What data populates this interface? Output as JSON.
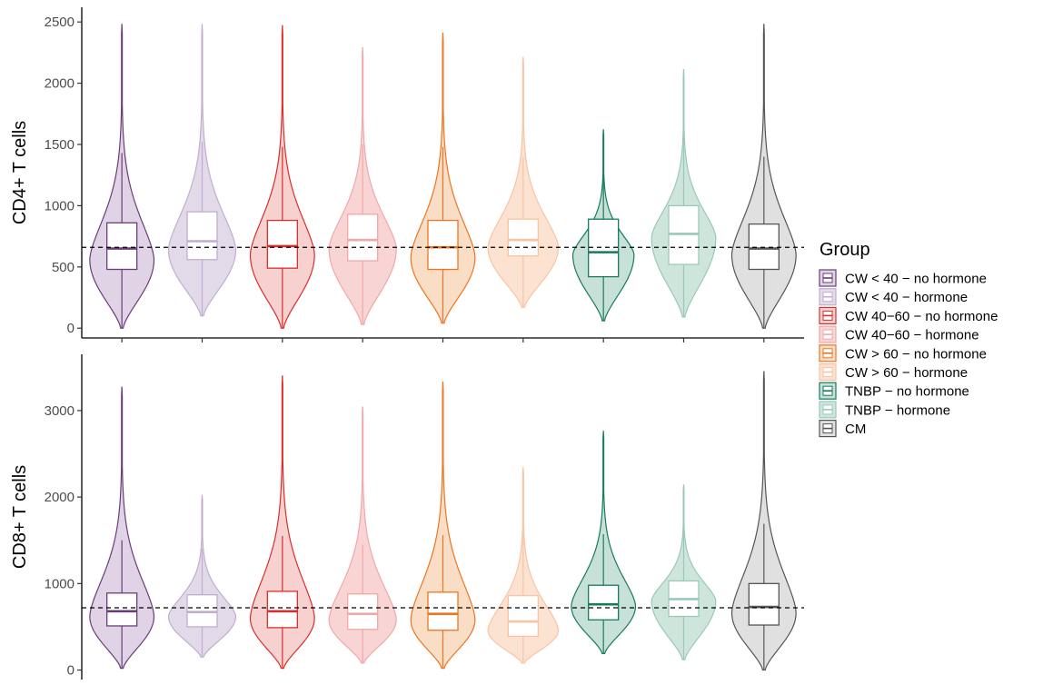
{
  "chart_data": {
    "type": "violin",
    "legend": {
      "title": "Group",
      "placement": "right",
      "entries": [
        {
          "label": "CW < 40 − no hormone",
          "color": "#6a3d7a",
          "fill": "#d6c4dc",
          "alpha": 0.75
        },
        {
          "label": "CW < 40 − hormone",
          "color": "#c1aed0",
          "fill": "#d8cce2",
          "alpha": 0.75
        },
        {
          "label": "CW 40−60 − no hormone",
          "color": "#d7302c",
          "fill": "#f3c1c0",
          "alpha": 0.75
        },
        {
          "label": "CW 40−60 − hormone",
          "color": "#f0a8a8",
          "fill": "#f5c6c6",
          "alpha": 0.75
        },
        {
          "label": "CW > 60 − no hormone",
          "color": "#ec7523",
          "fill": "#f8d1b1",
          "alpha": 0.75
        },
        {
          "label": "CW > 60 − hormone",
          "color": "#f8c4a4",
          "fill": "#fad8c1",
          "alpha": 0.75
        },
        {
          "label": "TNBP − no hormone",
          "color": "#167c5b",
          "fill": "#b5d7cb",
          "alpha": 0.75
        },
        {
          "label": "TNBP − hormone",
          "color": "#9ac9b9",
          "fill": "#bcdccf",
          "alpha": 0.75
        },
        {
          "label": "CM",
          "color": "#555555",
          "fill": "#d5d5d5",
          "alpha": 0.75
        }
      ]
    },
    "panels": [
      {
        "ylabel": "CD4+ T cells",
        "ylim": [
          -80,
          2620
        ],
        "yticks": [
          0,
          500,
          1000,
          1500,
          2000,
          2500
        ],
        "reference_line": 660,
        "groups": [
          {
            "min": 0,
            "q1": 480,
            "median": 650,
            "q3": 860,
            "whisker_high": 1430,
            "max": 2480,
            "mode": 560,
            "mode_width": 0.42
          },
          {
            "min": 100,
            "q1": 560,
            "median": 710,
            "q3": 950,
            "whisker_high": 1520,
            "max": 2480,
            "mode": 640,
            "mode_width": 0.44
          },
          {
            "min": 0,
            "q1": 490,
            "median": 670,
            "q3": 880,
            "whisker_high": 1480,
            "max": 2470,
            "mode": 600,
            "mode_width": 0.42
          },
          {
            "min": 30,
            "q1": 550,
            "median": 720,
            "q3": 930,
            "whisker_high": 1500,
            "max": 2290,
            "mode": 650,
            "mode_width": 0.44
          },
          {
            "min": 40,
            "q1": 480,
            "median": 660,
            "q3": 880,
            "whisker_high": 1480,
            "max": 2410,
            "mode": 580,
            "mode_width": 0.42
          },
          {
            "min": 170,
            "q1": 590,
            "median": 720,
            "q3": 890,
            "whisker_high": 1400,
            "max": 2210,
            "mode": 660,
            "mode_width": 0.46
          },
          {
            "min": 60,
            "q1": 420,
            "median": 620,
            "q3": 890,
            "whisker_high": 1420,
            "max": 1620,
            "mode": 600,
            "mode_width": 0.4
          },
          {
            "min": 90,
            "q1": 520,
            "median": 770,
            "q3": 1000,
            "whisker_high": 1650,
            "max": 2110,
            "mode": 740,
            "mode_width": 0.42
          },
          {
            "min": 0,
            "q1": 480,
            "median": 650,
            "q3": 850,
            "whisker_high": 1400,
            "max": 2480,
            "mode": 600,
            "mode_width": 0.42
          }
        ]
      },
      {
        "ylabel": "CD8+ T cells",
        "ylim": [
          -110,
          3650
        ],
        "yticks": [
          0,
          1000,
          2000,
          3000
        ],
        "reference_line": 720,
        "groups": [
          {
            "min": 20,
            "q1": 510,
            "median": 680,
            "q3": 890,
            "whisker_high": 1500,
            "max": 3270,
            "mode": 620,
            "mode_width": 0.42
          },
          {
            "min": 150,
            "q1": 500,
            "median": 670,
            "q3": 870,
            "whisker_high": 1400,
            "max": 2020,
            "mode": 620,
            "mode_width": 0.44
          },
          {
            "min": 20,
            "q1": 490,
            "median": 680,
            "q3": 910,
            "whisker_high": 1550,
            "max": 3400,
            "mode": 600,
            "mode_width": 0.42
          },
          {
            "min": 80,
            "q1": 470,
            "median": 650,
            "q3": 880,
            "whisker_high": 1450,
            "max": 3040,
            "mode": 580,
            "mode_width": 0.44
          },
          {
            "min": 20,
            "q1": 460,
            "median": 650,
            "q3": 900,
            "whisker_high": 1560,
            "max": 3330,
            "mode": 580,
            "mode_width": 0.42
          },
          {
            "min": 80,
            "q1": 390,
            "median": 560,
            "q3": 860,
            "whisker_high": 1600,
            "max": 2340,
            "mode": 460,
            "mode_width": 0.46
          },
          {
            "min": 190,
            "q1": 580,
            "median": 760,
            "q3": 980,
            "whisker_high": 1570,
            "max": 2760,
            "mode": 740,
            "mode_width": 0.42
          },
          {
            "min": 120,
            "q1": 620,
            "median": 820,
            "q3": 1030,
            "whisker_high": 1680,
            "max": 2140,
            "mode": 800,
            "mode_width": 0.42
          },
          {
            "min": 0,
            "q1": 520,
            "median": 730,
            "q3": 1000,
            "whisker_high": 1690,
            "max": 3450,
            "mode": 660,
            "mode_width": 0.42
          }
        ]
      }
    ]
  }
}
